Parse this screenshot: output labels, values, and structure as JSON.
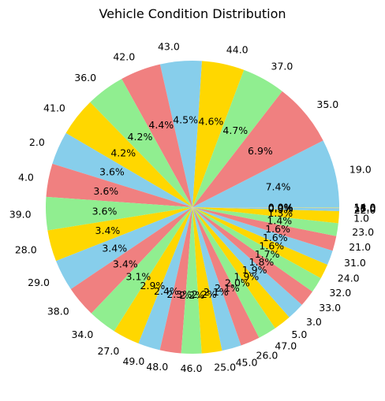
{
  "chart_data": {
    "type": "pie",
    "title": "Vehicle Condition Distribution",
    "colors": [
      "#87ceeb",
      "#f08080",
      "#90ee90",
      "#ffd700"
    ],
    "start_angle_deg": 0,
    "direction": "counterclockwise",
    "slices": [
      {
        "label": "19.0",
        "pct": "7.4%",
        "value": 7.4
      },
      {
        "label": "35.0",
        "pct": "6.9%",
        "value": 6.9
      },
      {
        "label": "37.0",
        "pct": "4.7%",
        "value": 4.7
      },
      {
        "label": "44.0",
        "pct": "4.6%",
        "value": 4.6
      },
      {
        "label": "43.0",
        "pct": "4.5%",
        "value": 4.5
      },
      {
        "label": "42.0",
        "pct": "4.4%",
        "value": 4.4
      },
      {
        "label": "36.0",
        "pct": "4.2%",
        "value": 4.2
      },
      {
        "label": "41.0",
        "pct": "4.2%",
        "value": 4.2
      },
      {
        "label": "2.0",
        "pct": "3.6%",
        "value": 3.6
      },
      {
        "label": "4.0",
        "pct": "3.6%",
        "value": 3.6
      },
      {
        "label": "39.0",
        "pct": "3.6%",
        "value": 3.6
      },
      {
        "label": "28.0",
        "pct": "3.4%",
        "value": 3.4
      },
      {
        "label": "29.0",
        "pct": "3.4%",
        "value": 3.4
      },
      {
        "label": "38.0",
        "pct": "3.4%",
        "value": 3.4
      },
      {
        "label": "34.0",
        "pct": "3.1%",
        "value": 3.1
      },
      {
        "label": "27.0",
        "pct": "2.9%",
        "value": 2.9
      },
      {
        "label": "49.0",
        "pct": "2.4%",
        "value": 2.4
      },
      {
        "label": "48.0",
        "pct": "2.3%",
        "value": 2.3
      },
      {
        "label": "46.0",
        "pct": "2.2%",
        "value": 2.2
      },
      {
        "label": "25.0",
        "pct": "2.2%",
        "value": 2.2
      },
      {
        "label": "45.0",
        "pct": "2.1%",
        "value": 2.1
      },
      {
        "label": "26.0",
        "pct": "2.1%",
        "value": 2.1
      },
      {
        "label": "47.0",
        "pct": "2.0%",
        "value": 2.0
      },
      {
        "label": "5.0",
        "pct": "1.9%",
        "value": 1.9
      },
      {
        "label": "3.0",
        "pct": "1.9%",
        "value": 1.9
      },
      {
        "label": "33.0",
        "pct": "1.8%",
        "value": 1.8
      },
      {
        "label": "32.0",
        "pct": "1.7%",
        "value": 1.7
      },
      {
        "label": "24.0",
        "pct": "1.6%",
        "value": 1.6
      },
      {
        "label": "31.0",
        "pct": "1.6%",
        "value": 1.6
      },
      {
        "label": "21.0",
        "pct": "1.6%",
        "value": 1.6
      },
      {
        "label": "23.0",
        "pct": "1.4%",
        "value": 1.4
      },
      {
        "label": "1.0",
        "pct": "1.3%",
        "value": 1.3
      },
      {
        "label": "22.0",
        "pct": "0.3%",
        "value": 0.3
      },
      {
        "label": "15.0",
        "pct": "0.0%",
        "value": 0.03
      },
      {
        "label": "18.0",
        "pct": "0.0%",
        "value": 0.03
      },
      {
        "label": "11.0",
        "pct": "0.0%",
        "value": 0.03
      },
      {
        "label": "14.0",
        "pct": "0.0%",
        "value": 0.03
      }
    ]
  }
}
